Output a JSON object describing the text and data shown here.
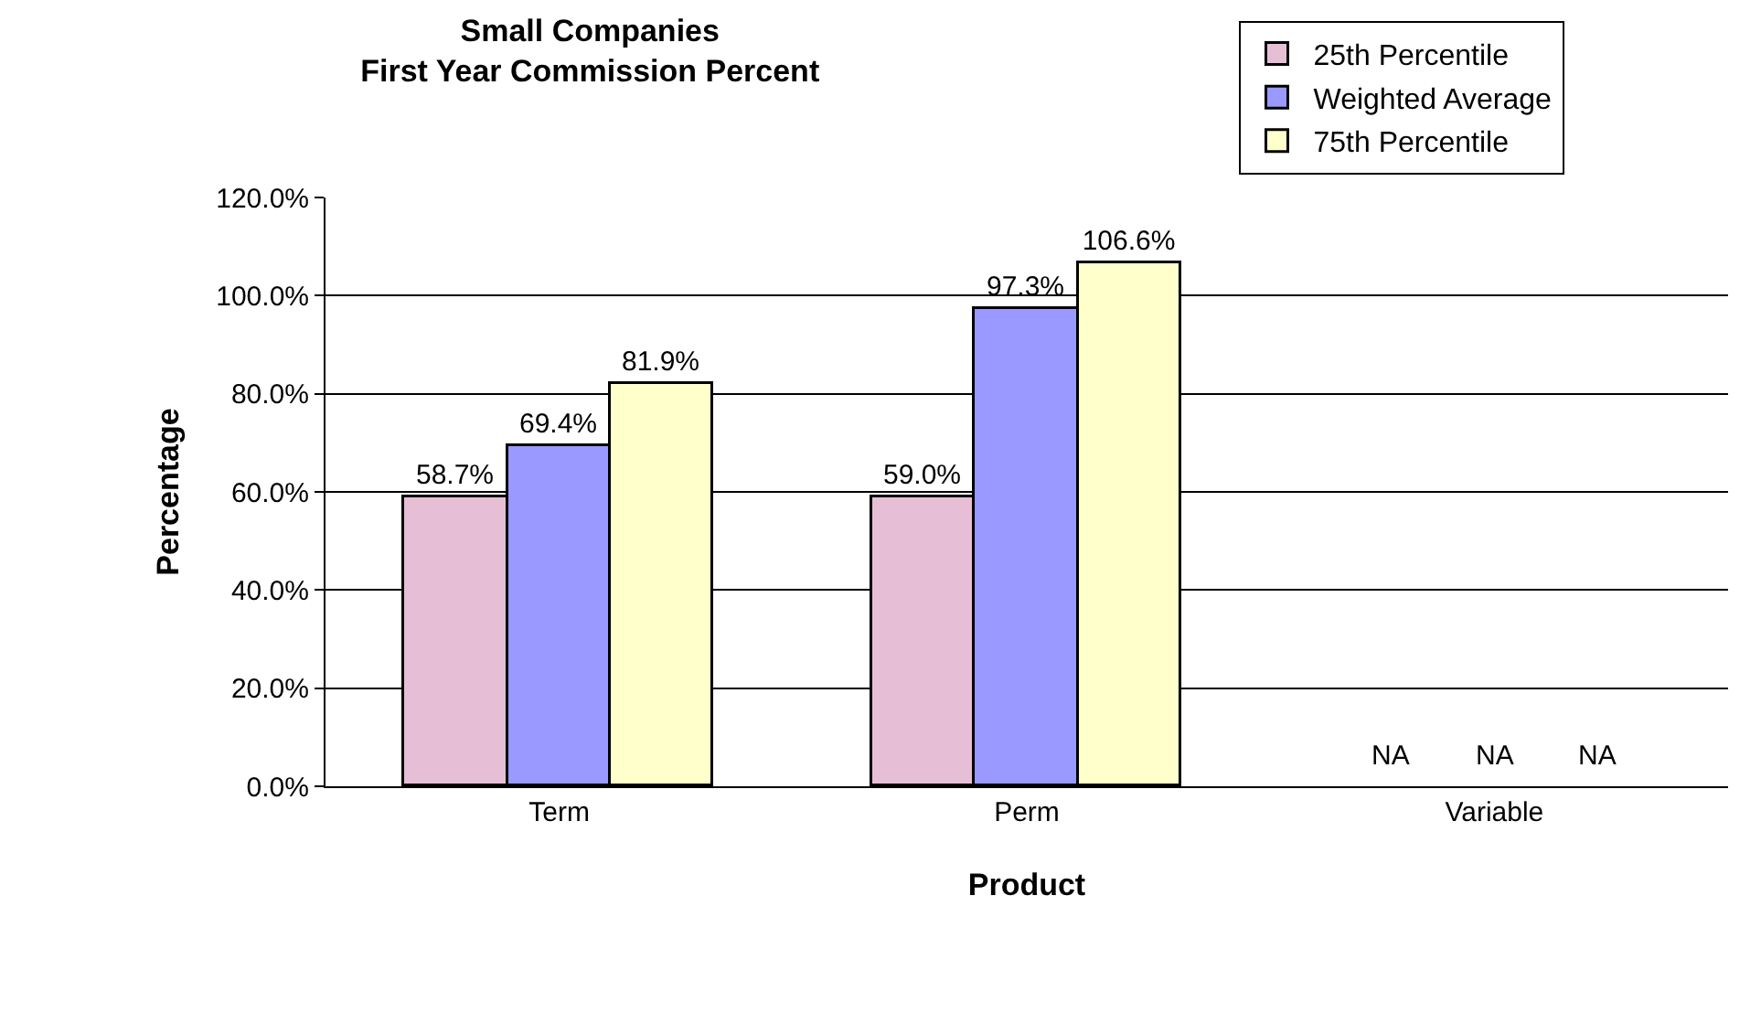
{
  "chart_data": {
    "type": "bar",
    "title": "Small Companies\nFirst Year Commission Percent",
    "xlabel": "Product",
    "ylabel": "Percentage",
    "categories": [
      "Term",
      "Perm",
      "Variable"
    ],
    "series": [
      {
        "name": "25th Percentile",
        "color": "#e6bfd6",
        "values": [
          58.7,
          59.0,
          null
        ],
        "value_labels": [
          "58.7%",
          "59.0%",
          "NA"
        ]
      },
      {
        "name": "Weighted Average",
        "color": "#9999ff",
        "values": [
          69.4,
          97.3,
          null
        ],
        "value_labels": [
          "69.4%",
          "97.3%",
          "NA"
        ]
      },
      {
        "name": "75th Percentile",
        "color": "#ffffcc",
        "values": [
          81.9,
          106.6,
          null
        ],
        "value_labels": [
          "81.9%",
          "106.6%",
          "NA"
        ]
      }
    ],
    "ylim": [
      0,
      120
    ],
    "yticks": [
      {
        "value": 0,
        "label": "0.0%"
      },
      {
        "value": 20,
        "label": "20.0%"
      },
      {
        "value": 40,
        "label": "40.0%"
      },
      {
        "value": 60,
        "label": "60.0%"
      },
      {
        "value": 80,
        "label": "80.0%"
      },
      {
        "value": 100,
        "label": "100.0%"
      },
      {
        "value": 120,
        "label": "120.0%"
      }
    ],
    "grid": "y",
    "legend": "top right"
  }
}
